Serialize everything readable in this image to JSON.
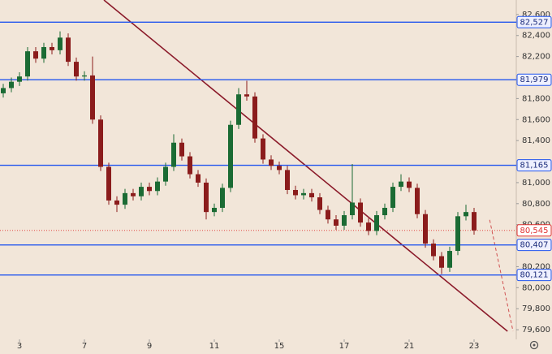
{
  "chart_data": {
    "type": "candlestick",
    "x": [
      -0.5,
      -0.25,
      0,
      0.25,
      0.5,
      0.75,
      1,
      1.25,
      1.5,
      1.75,
      2,
      2.25,
      2.5,
      2.75,
      3,
      3.25,
      3.5,
      3.75,
      4,
      4.25,
      4.5,
      4.75,
      5,
      5.25,
      5.5,
      5.75,
      6,
      6.25,
      6.5,
      6.75,
      7,
      7.25,
      7.5,
      7.75,
      8,
      8.25,
      8.5,
      8.75,
      9,
      9.25,
      9.5,
      9.75,
      10,
      10.25,
      10.5,
      10.75,
      11,
      11.25,
      11.5,
      11.75,
      12,
      12.25,
      12.5,
      12.75,
      13,
      13.25,
      13.5,
      13.75,
      14
    ],
    "open": [
      81850,
      81900,
      81960,
      82010,
      82250,
      82180,
      82290,
      82260,
      82380,
      82150,
      82010,
      82020,
      81600,
      81150,
      80830,
      80790,
      80900,
      80870,
      80960,
      80920,
      81010,
      81150,
      81380,
      81250,
      81080,
      81000,
      80720,
      80760,
      80950,
      81550,
      81840,
      81820,
      81420,
      81220,
      81160,
      81120,
      80930,
      80880,
      80900,
      80860,
      80740,
      80650,
      80590,
      80690,
      80810,
      80620,
      80540,
      80690,
      80760,
      80960,
      81010,
      80950,
      80700,
      80420,
      80300,
      80190,
      80350,
      80680,
      80720
    ],
    "high": [
      81940,
      82000,
      82050,
      82290,
      82290,
      82330,
      82330,
      82440,
      82420,
      82190,
      82060,
      82200,
      81640,
      81190,
      80870,
      80940,
      80940,
      81000,
      81000,
      81050,
      81190,
      81460,
      81420,
      81290,
      81120,
      81040,
      80800,
      80990,
      81590,
      81900,
      81969,
      81860,
      81460,
      81260,
      81200,
      81160,
      80970,
      80940,
      80940,
      80900,
      80780,
      80690,
      80730,
      81177,
      80850,
      80660,
      80730,
      80800,
      81000,
      81080,
      81050,
      80990,
      80740,
      80460,
      80340,
      80390,
      80720,
      80790,
      80760
    ],
    "low": [
      81810,
      81860,
      81920,
      81970,
      82140,
      82140,
      82220,
      82220,
      82110,
      81970,
      81970,
      81560,
      81110,
      80790,
      80720,
      80750,
      80830,
      80830,
      80880,
      80880,
      80970,
      81110,
      81210,
      81040,
      80960,
      80650,
      80680,
      80720,
      80910,
      81510,
      81780,
      81380,
      81180,
      81120,
      81080,
      80890,
      80840,
      80840,
      80820,
      80700,
      80610,
      80550,
      80550,
      80650,
      80580,
      80500,
      80500,
      80650,
      80720,
      80920,
      80910,
      80660,
      80380,
      80260,
      80130,
      80150,
      80310,
      80640,
      80505
    ],
    "close": [
      81900,
      81960,
      82010,
      82250,
      82180,
      82290,
      82260,
      82380,
      82150,
      82010,
      82020,
      81600,
      81150,
      80830,
      80790,
      80900,
      80870,
      80960,
      80920,
      81010,
      81150,
      81380,
      81250,
      81080,
      81000,
      80720,
      80760,
      80950,
      81550,
      81840,
      81820,
      81420,
      81220,
      81160,
      81120,
      80930,
      80880,
      80900,
      80860,
      80740,
      80650,
      80590,
      80690,
      80810,
      80620,
      80540,
      80690,
      80760,
      80960,
      81010,
      80950,
      80700,
      80420,
      80300,
      80190,
      80350,
      80680,
      80720,
      80545
    ],
    "up_color": "#1b6b34",
    "down_color": "#8b1c1c",
    "xlim": [
      -0.6,
      15.3
    ],
    "xticks": [
      {
        "value": 0,
        "label": "3"
      },
      {
        "value": 2,
        "label": "7"
      },
      {
        "value": 4,
        "label": "9"
      },
      {
        "value": 6,
        "label": "11"
      },
      {
        "value": 8,
        "label": "15"
      },
      {
        "value": 10,
        "label": "17"
      },
      {
        "value": 12,
        "label": "21"
      },
      {
        "value": 14,
        "label": "23"
      }
    ],
    "ylim": [
      79508,
      82738
    ],
    "yticks": [
      {
        "value": 79600,
        "label": "79,600"
      },
      {
        "value": 79800,
        "label": "79,800"
      },
      {
        "value": 80000,
        "label": "80,000"
      },
      {
        "value": 80200,
        "label": "80,200"
      },
      {
        "value": 80600,
        "label": "80,600"
      },
      {
        "value": 80800,
        "label": "80,800"
      },
      {
        "value": 81000,
        "label": "81,000"
      },
      {
        "value": 81400,
        "label": "81,400"
      },
      {
        "value": 81600,
        "label": "81,600"
      },
      {
        "value": 81800,
        "label": "81,800"
      },
      {
        "value": 82200,
        "label": "82,200"
      },
      {
        "value": 82400,
        "label": "82,400"
      },
      {
        "value": 82600,
        "label": "82,600"
      }
    ],
    "levels": [
      {
        "value": 82527,
        "label": "82,527"
      },
      {
        "value": 81979,
        "label": "81,979"
      },
      {
        "value": 81165,
        "label": "81,165"
      },
      {
        "value": 80407,
        "label": "80,407"
      },
      {
        "value": 80121,
        "label": "80,121"
      }
    ],
    "level_color": "#2255ee",
    "last_price": {
      "value": 80545,
      "label": "80,545"
    },
    "last_price_color": "#e03030",
    "trendline": {
      "x": [
        2.6,
        15.03
      ],
      "y": [
        82738,
        79585
      ],
      "color": "#8b1a2a"
    },
    "projection": {
      "x": [
        14.48,
        15.2
      ],
      "y": [
        80646,
        79585
      ],
      "color": "#d05050"
    }
  }
}
